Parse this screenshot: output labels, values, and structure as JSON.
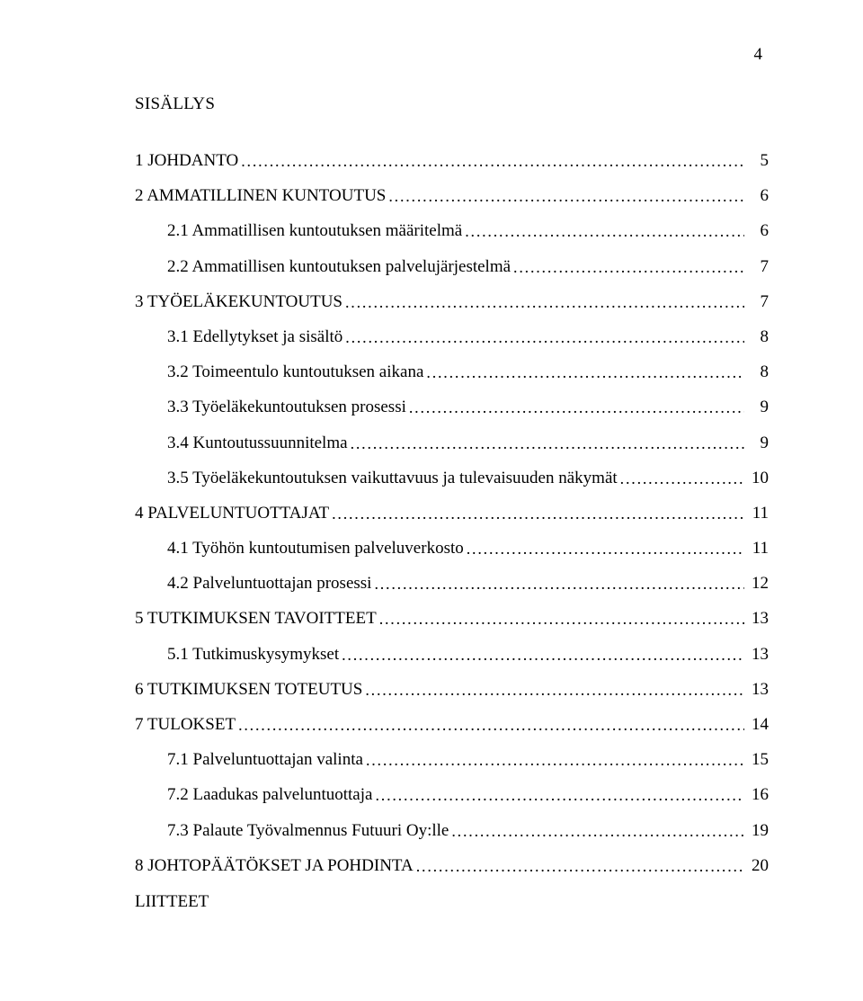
{
  "pageNumber": "4",
  "title": "SISÄLLYS",
  "toc": [
    {
      "level": 0,
      "label": "1 JOHDANTO",
      "page": "5"
    },
    {
      "level": 0,
      "label": "2 AMMATILLINEN KUNTOUTUS",
      "page": "6"
    },
    {
      "level": 1,
      "label": "2.1 Ammatillisen kuntoutuksen määritelmä",
      "page": "6"
    },
    {
      "level": 1,
      "label": "2.2 Ammatillisen kuntoutuksen palvelujärjestelmä",
      "page": "7"
    },
    {
      "level": 0,
      "label": "3 TYÖELÄKEKUNTOUTUS",
      "page": "7"
    },
    {
      "level": 1,
      "label": "3.1 Edellytykset ja sisältö",
      "page": "8"
    },
    {
      "level": 1,
      "label": "3.2 Toimeentulo kuntoutuksen aikana",
      "page": "8"
    },
    {
      "level": 1,
      "label": "3.3 Työeläkekuntoutuksen prosessi",
      "page": "9"
    },
    {
      "level": 1,
      "label": "3.4 Kuntoutussuunnitelma",
      "page": "9"
    },
    {
      "level": 1,
      "label": "3.5 Työeläkekuntoutuksen vaikuttavuus ja tulevaisuuden näkymät",
      "page": "10"
    },
    {
      "level": 0,
      "label": "4 PALVELUNTUOTTAJAT",
      "page": "11"
    },
    {
      "level": 1,
      "label": "4.1 Työhön kuntoutumisen palveluverkosto",
      "page": "11"
    },
    {
      "level": 1,
      "label": "4.2 Palveluntuottajan prosessi",
      "page": "12"
    },
    {
      "level": 0,
      "label": "5 TUTKIMUKSEN TAVOITTEET",
      "page": "13"
    },
    {
      "level": 1,
      "label": "5.1 Tutkimuskysymykset",
      "page": "13"
    },
    {
      "level": 0,
      "label": "6 TUTKIMUKSEN TOTEUTUS",
      "page": "13"
    },
    {
      "level": 0,
      "label": "7 TULOKSET",
      "page": "14"
    },
    {
      "level": 1,
      "label": "7.1 Palveluntuottajan valinta",
      "page": "15"
    },
    {
      "level": 1,
      "label": "7.2 Laadukas palveluntuottaja",
      "page": "16"
    },
    {
      "level": 1,
      "label": "7.3 Palaute Työvalmennus Futuuri Oy:lle",
      "page": "19"
    },
    {
      "level": 0,
      "label": "8 JOHTOPÄÄTÖKSET JA POHDINTA",
      "page": "20"
    }
  ],
  "appendixLabel": "LIITTEET"
}
